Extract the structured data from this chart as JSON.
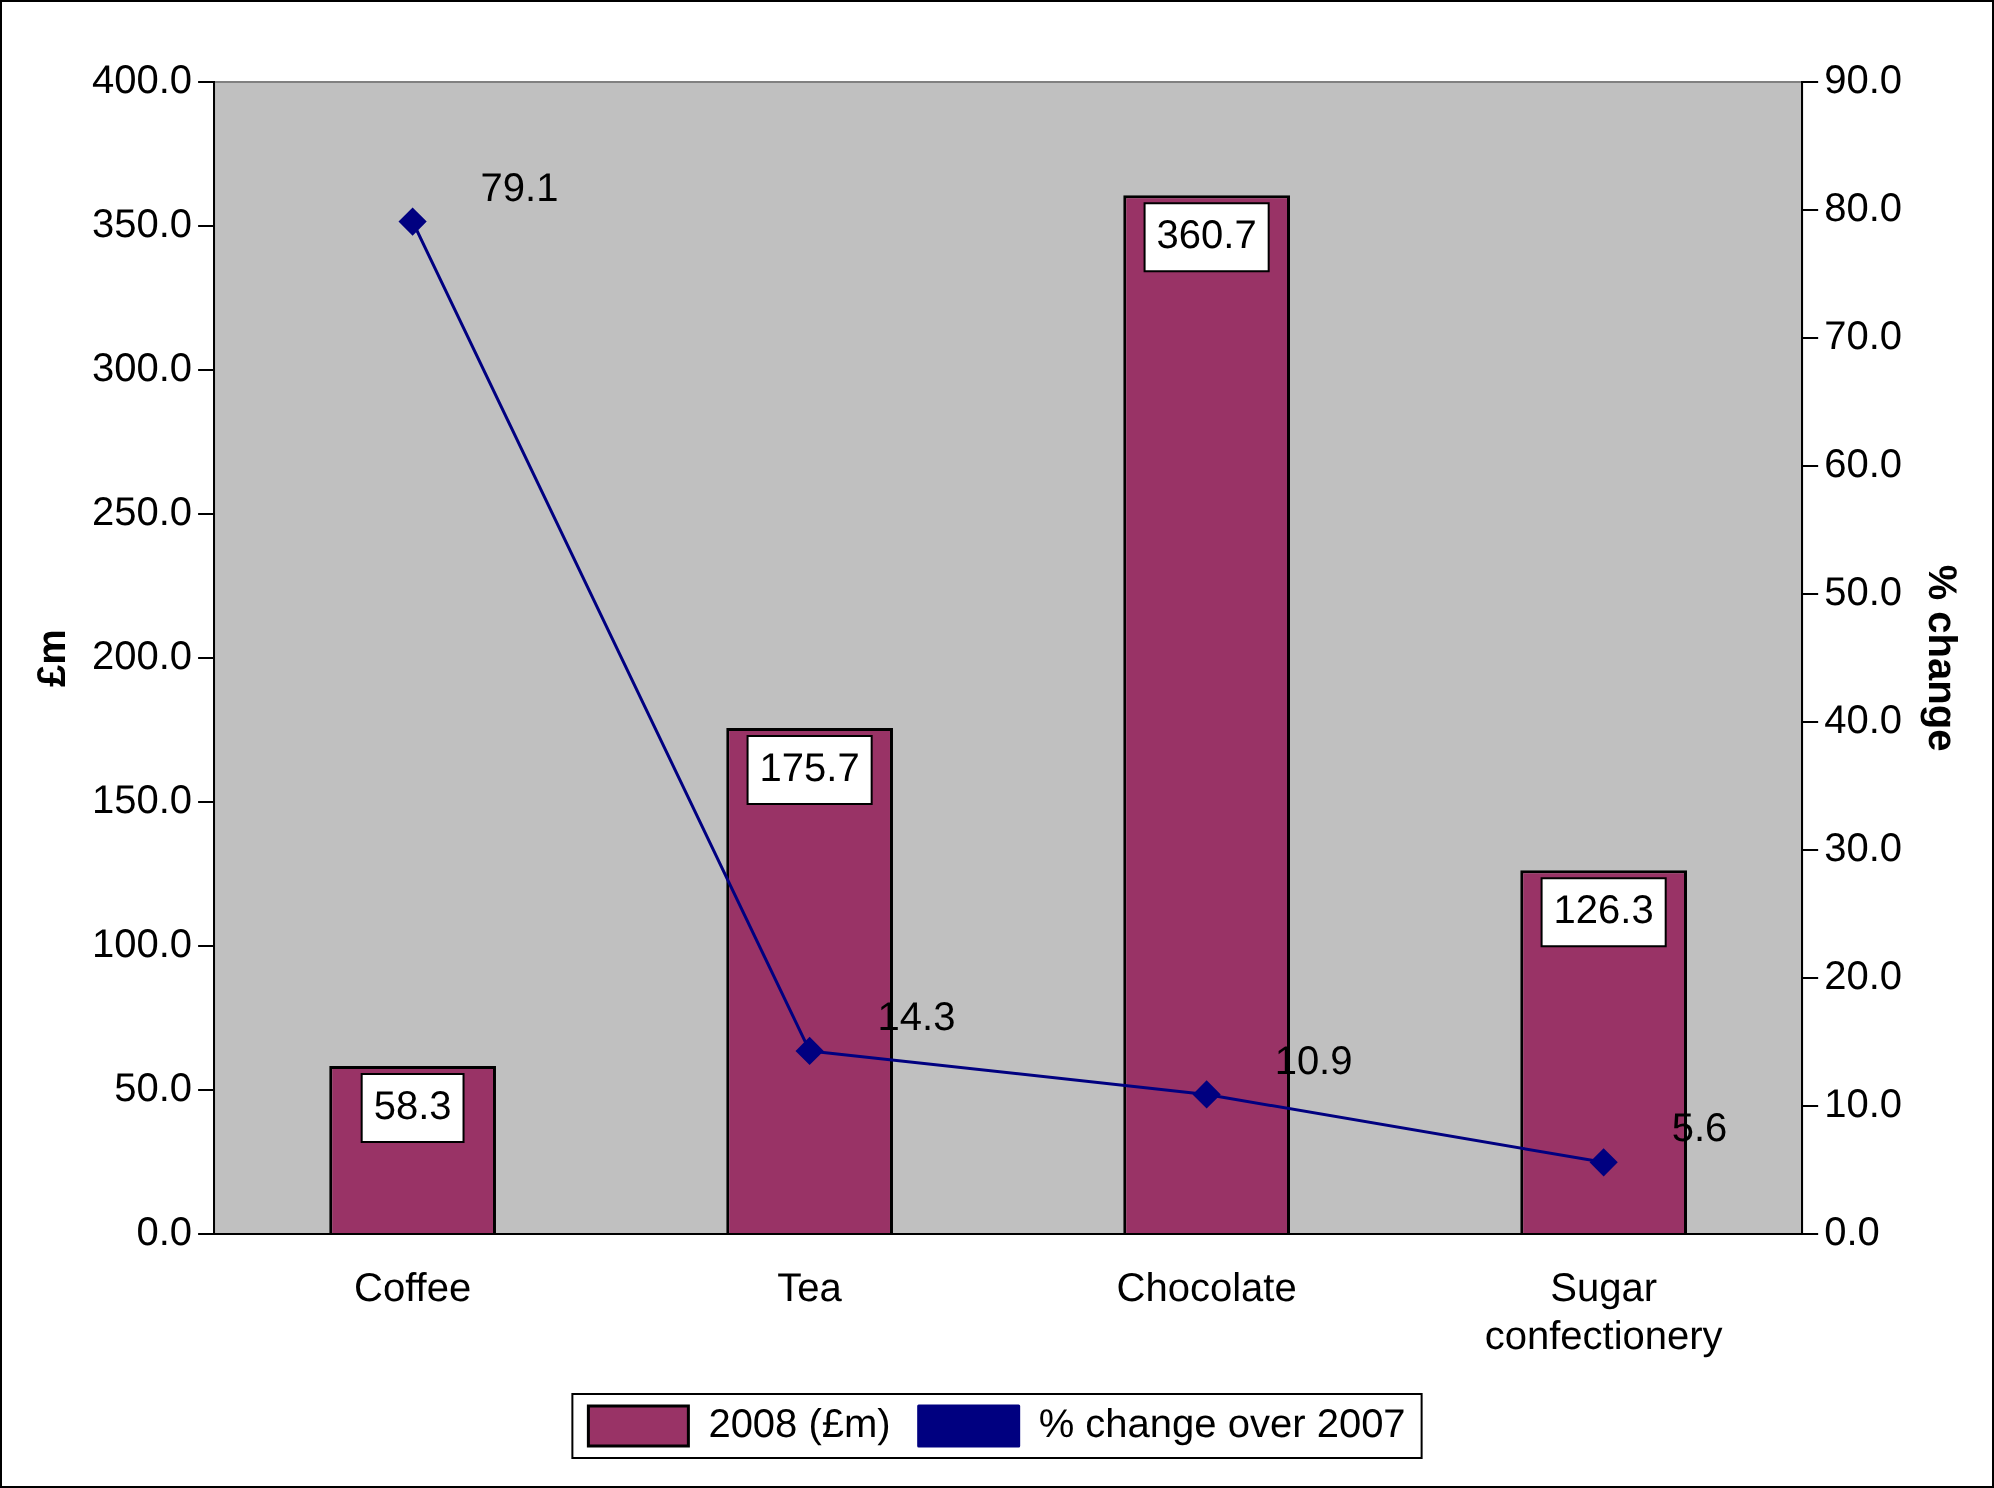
{
  "chart_data": {
    "type": "bar",
    "categories": [
      "Coffee",
      "Tea",
      "Chocolate",
      "Sugar confectionery"
    ],
    "series": [
      {
        "name": "2008 (£m)",
        "color": "#993366",
        "values": [
          58.3,
          175.7,
          360.7,
          126.3
        ]
      },
      {
        "name": "% change over 2007",
        "type": "line",
        "axis": "y2",
        "color": "#000080",
        "values": [
          79.1,
          14.3,
          10.9,
          5.6
        ]
      }
    ],
    "ylabel": "£m",
    "y2label": "% change",
    "ylim": [
      0,
      400
    ],
    "yticks": [
      {
        "value": 0,
        "label": "0.0"
      },
      {
        "value": 50,
        "label": "50.0"
      },
      {
        "value": 100,
        "label": "100.0"
      },
      {
        "value": 150,
        "label": "150.0"
      },
      {
        "value": 200,
        "label": "200.0"
      },
      {
        "value": 250,
        "label": "250.0"
      },
      {
        "value": 300,
        "label": "300.0"
      },
      {
        "value": 350,
        "label": "350.0"
      },
      {
        "value": 400,
        "label": "400.0"
      }
    ],
    "y2lim": [
      0,
      90
    ],
    "y2ticks": [
      {
        "value": 0,
        "label": "0.0"
      },
      {
        "value": 10,
        "label": "10.0"
      },
      {
        "value": 20,
        "label": "20.0"
      },
      {
        "value": 30,
        "label": "30.0"
      },
      {
        "value": 40,
        "label": "40.0"
      },
      {
        "value": 50,
        "label": "50.0"
      },
      {
        "value": 60,
        "label": "60.0"
      },
      {
        "value": 70,
        "label": "70.0"
      },
      {
        "value": 80,
        "label": "80.0"
      },
      {
        "value": 90,
        "label": "90.0"
      }
    ],
    "data_labels": true,
    "grid": false,
    "legend": "bottom",
    "marker": "diamond",
    "line_style": "solid"
  }
}
